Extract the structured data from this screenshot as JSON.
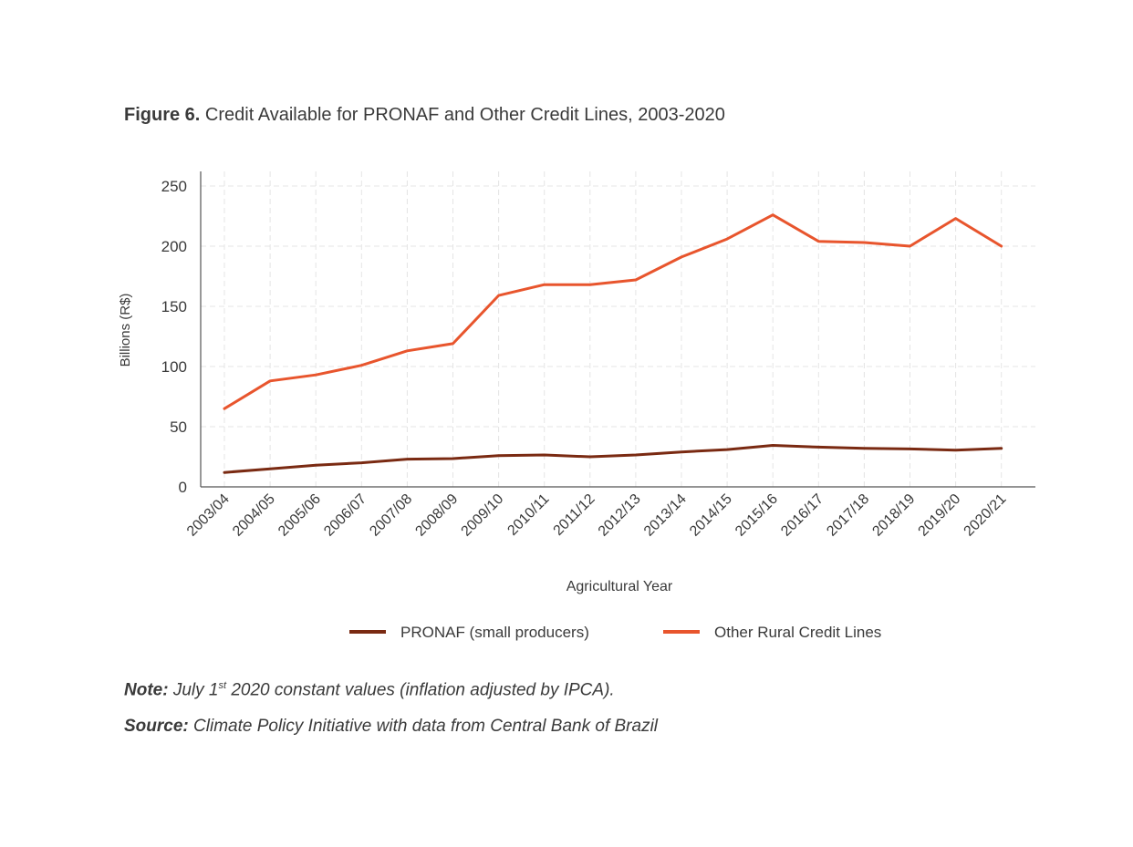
{
  "figure": {
    "title_lead": "Figure 6.",
    "title_rest": "Credit Available for PRONAF and Other Credit Lines, 2003-2020"
  },
  "chart_data": {
    "type": "line",
    "title": "Credit Available for PRONAF and Other Credit Lines, 2003-2020",
    "xlabel": "Agricultural Year",
    "ylabel": "Billions (R$)",
    "ylim": [
      0,
      250
    ],
    "yticks": [
      0,
      50,
      100,
      150,
      200,
      250
    ],
    "grid": true,
    "legend_position": "bottom",
    "categories": [
      "2003/04",
      "2004/05",
      "2005/06",
      "2006/07",
      "2007/08",
      "2008/09",
      "2009/10",
      "2010/11",
      "2011/12",
      "2012/13",
      "2013/14",
      "2014/15",
      "2015/16",
      "2016/17",
      "2017/18",
      "2018/19",
      "2019/20",
      "2020/21"
    ],
    "series": [
      {
        "name": "PRONAF (small producers)",
        "color": "#7a2a12",
        "values": [
          12,
          15,
          18,
          20,
          23,
          23.5,
          26,
          26.5,
          25,
          26.5,
          29,
          31,
          34.5,
          33,
          32,
          31.5,
          30.5,
          32
        ]
      },
      {
        "name": "Other Rural Credit Lines",
        "color": "#e8552d",
        "values": [
          65,
          88,
          93,
          101,
          113,
          119,
          159,
          168,
          168,
          172,
          191,
          206,
          226,
          204,
          203,
          200,
          223,
          200
        ]
      }
    ]
  },
  "notes": {
    "note_lead": "Note:",
    "note_pre": "July 1",
    "note_sup": "st",
    "note_post": "2020 constant values (inflation adjusted by IPCA).",
    "source_lead": "Source:",
    "source_text": "Climate Policy Initiative with data from Central Bank of Brazil"
  }
}
